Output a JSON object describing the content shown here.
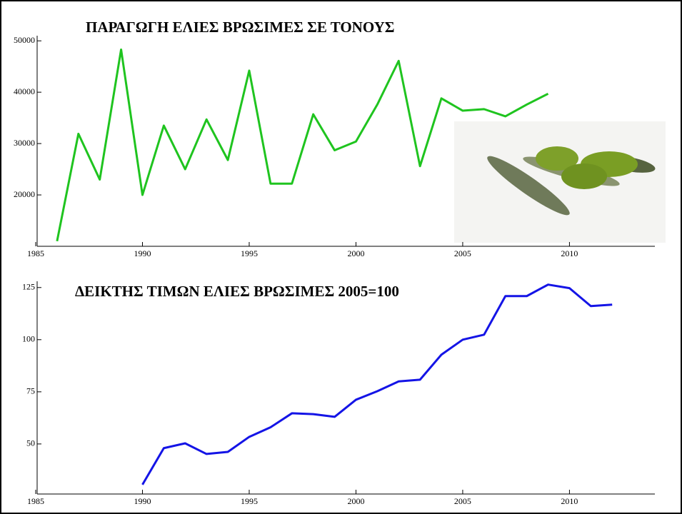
{
  "chart_data": [
    {
      "type": "line",
      "title": "ΠΑΡΑΓΩΓΗ ΕΛΙΕΣ ΒΡΩΣΙΜΕΣ ΣΕ ΤΟΝΟΥΣ",
      "x": [
        1986,
        1987,
        1988,
        1989,
        1990,
        1991,
        1992,
        1993,
        1994,
        1995,
        1996,
        1997,
        1998,
        1999,
        2000,
        2001,
        2002,
        2003,
        2004,
        2005,
        2006,
        2007,
        2008,
        2009
      ],
      "values": [
        11000,
        31900,
        23000,
        48300,
        20000,
        33500,
        25000,
        34700,
        26800,
        44200,
        22200,
        22200,
        35700,
        28700,
        30400,
        37600,
        46100,
        25600,
        38800,
        36400,
        36700,
        35300,
        37600,
        39700
      ],
      "color": "#1fc41f",
      "xlim": [
        1985,
        2014
      ],
      "xticks": [
        1985,
        1990,
        1995,
        2000,
        2005,
        2010
      ],
      "ylim": [
        10000,
        51000
      ],
      "yticks": [
        20000,
        30000,
        40000,
        50000
      ]
    },
    {
      "type": "line",
      "title": "ΔΕΙΚΤΗΣ ΤΙΜΩΝ ΕΛΙΕΣ ΒΡΩΣΙΜΕΣ 2005=100",
      "x": [
        1990,
        1991,
        1992,
        1993,
        1994,
        1995,
        1996,
        1997,
        1998,
        1999,
        2000,
        2001,
        2002,
        2003,
        2004,
        2005,
        2006,
        2007,
        2008,
        2009,
        2010,
        2011,
        2012
      ],
      "values": [
        30.5,
        48,
        50.3,
        45.2,
        46.2,
        53.4,
        58,
        64.7,
        64.3,
        63,
        71.2,
        75.3,
        80,
        80.8,
        92.8,
        100,
        102.4,
        120.9,
        120.9,
        126.4,
        124.7,
        116.1,
        116.8
      ],
      "color": "#1414e6",
      "xlim": [
        1985,
        2014
      ],
      "xticks": [
        1985,
        1990,
        1995,
        2000,
        2005,
        2010
      ],
      "ylim": [
        26,
        128
      ],
      "yticks": [
        50,
        75,
        100,
        125
      ]
    }
  ]
}
